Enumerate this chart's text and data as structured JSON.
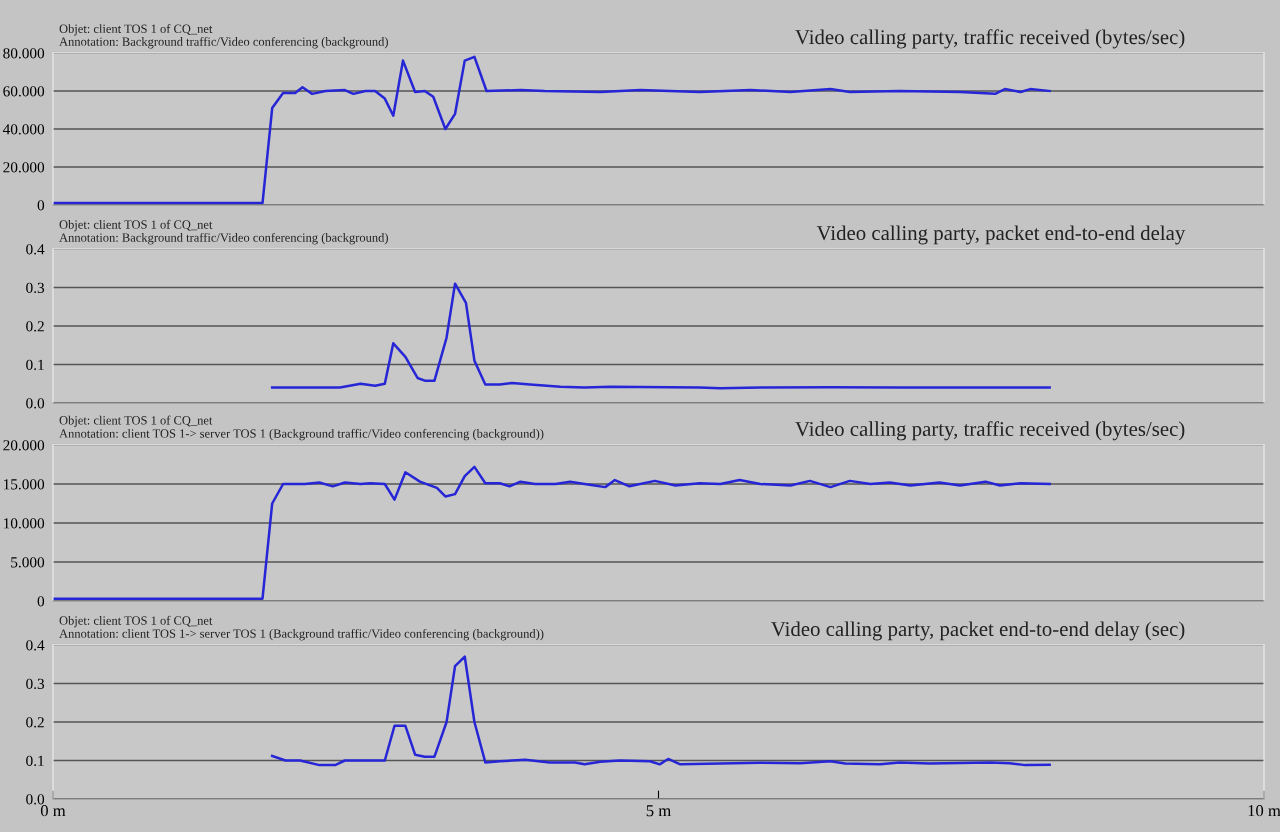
{
  "chart_data": [
    {
      "type": "line",
      "title": "Video calling party, traffic received (bytes/sec)",
      "annotations": [
        "Objet: client TOS 1 of CQ_net",
        "Annotation: Background traffic/Video conferencing (background)"
      ],
      "series": [
        {
          "color": "#2626d6",
          "x": [
            0,
            1.73,
            1.81,
            1.9,
            2.0,
            2.06,
            2.14,
            2.25,
            2.41,
            2.48,
            2.58,
            2.66,
            2.74,
            2.81,
            2.89,
            2.99,
            3.07,
            3.14,
            3.24,
            3.32,
            3.4,
            3.48,
            3.58,
            3.86,
            4.06,
            4.52,
            4.85,
            5.34,
            5.76,
            6.09,
            6.42,
            6.58,
            6.99,
            7.49,
            7.78,
            7.86,
            7.99,
            8.07,
            8.23
          ],
          "values": [
            1.0,
            1.0,
            51.0,
            59.0,
            59.0,
            62.0,
            58.5,
            60.0,
            60.5,
            58.5,
            60.0,
            60.0,
            56.0,
            47.0,
            76.0,
            59.5,
            60.0,
            57.0,
            40.0,
            48.0,
            76.0,
            78.0,
            60.0,
            60.5,
            60.0,
            59.5,
            60.5,
            59.5,
            60.5,
            59.5,
            61.0,
            59.5,
            60.0,
            59.5,
            58.5,
            61.0,
            59.5,
            61.0,
            60.0
          ]
        }
      ],
      "xlim": [
        0,
        10
      ],
      "ylim": [
        0,
        80
      ],
      "yticks": [
        0,
        {
          "value": 20,
          "label": "20.000"
        },
        {
          "value": 40,
          "label": "40.000"
        },
        {
          "value": 60,
          "label": "60.000"
        },
        {
          "value": 80,
          "label": "80.000"
        }
      ],
      "tick_labels": "y",
      "grid": "y"
    },
    {
      "type": "line",
      "title": "Video calling party, packet end-to-end delay",
      "annotations": [
        "Objet: client TOS 1 of CQ_net",
        "Annotation: Background traffic/Video conferencing (background)"
      ],
      "series": [
        {
          "color": "#2626d6",
          "x": [
            1.81,
            2.37,
            2.54,
            2.66,
            2.74,
            2.81,
            2.91,
            3.01,
            3.07,
            3.15,
            3.25,
            3.32,
            3.41,
            3.48,
            3.57,
            3.69,
            3.79,
            3.94,
            4.19,
            4.39,
            4.6,
            5.34,
            5.51,
            5.84,
            6.42,
            6.99,
            8.23
          ],
          "values": [
            0.04,
            0.04,
            0.05,
            0.045,
            0.05,
            0.155,
            0.12,
            0.065,
            0.058,
            0.058,
            0.17,
            0.31,
            0.26,
            0.11,
            0.048,
            0.048,
            0.052,
            0.048,
            0.042,
            0.04,
            0.042,
            0.04,
            0.038,
            0.04,
            0.041,
            0.04,
            0.04
          ]
        }
      ],
      "xlim": [
        0,
        10
      ],
      "ylim": [
        0,
        0.4
      ],
      "yticks": [
        {
          "value": 0,
          "label": "0.0"
        },
        0.1,
        0.2,
        0.3,
        0.4
      ],
      "tick_labels": "y",
      "grid": "y"
    },
    {
      "type": "line",
      "title": "Video calling party, traffic received (bytes/sec)",
      "annotations": [
        "Objet: client TOS 1 of CQ_net",
        "Annotation: client TOS 1-> server TOS 1 (Background traffic/Video conferencing (background))"
      ],
      "series": [
        {
          "color": "#2626d6",
          "x": [
            0,
            1.73,
            1.81,
            1.9,
            2.08,
            2.2,
            2.31,
            2.41,
            2.54,
            2.62,
            2.74,
            2.82,
            2.91,
            3.03,
            3.17,
            3.24,
            3.32,
            3.4,
            3.48,
            3.57,
            3.69,
            3.77,
            3.86,
            3.98,
            4.15,
            4.27,
            4.43,
            4.56,
            4.64,
            4.76,
            4.97,
            5.14,
            5.34,
            5.51,
            5.67,
            5.84,
            6.09,
            6.25,
            6.42,
            6.58,
            6.75,
            6.91,
            7.08,
            7.32,
            7.49,
            7.7,
            7.82,
            7.99,
            8.23
          ],
          "values": [
            0.3,
            0.3,
            12.5,
            15.0,
            15.0,
            15.2,
            14.7,
            15.2,
            15.0,
            15.1,
            15.0,
            13.0,
            16.5,
            15.3,
            14.5,
            13.4,
            13.7,
            16.0,
            17.2,
            15.1,
            15.1,
            14.7,
            15.3,
            15.0,
            15.0,
            15.3,
            14.9,
            14.6,
            15.5,
            14.7,
            15.4,
            14.8,
            15.1,
            15.0,
            15.5,
            15.0,
            14.8,
            15.4,
            14.6,
            15.4,
            15.0,
            15.2,
            14.8,
            15.2,
            14.8,
            15.3,
            14.8,
            15.1,
            15.0
          ]
        }
      ],
      "xlim": [
        0,
        10
      ],
      "ylim": [
        0,
        20
      ],
      "yticks": [
        0,
        {
          "value": 5,
          "label": "5.000"
        },
        {
          "value": 10,
          "label": "10.000"
        },
        {
          "value": 15,
          "label": "15.000"
        },
        {
          "value": 20,
          "label": "20.000"
        }
      ],
      "tick_labels": "y",
      "grid": "y"
    },
    {
      "type": "line",
      "title": "Video calling party, packet end-to-end delay (sec)",
      "annotations": [
        "Objet: client TOS 1 of CQ_net",
        "Annotation: client TOS 1-> server TOS 1 (Background traffic/Video conferencing (background))"
      ],
      "series": [
        {
          "color": "#2626d6",
          "x": [
            1.81,
            1.92,
            2.04,
            2.2,
            2.33,
            2.41,
            2.74,
            2.82,
            2.91,
            2.99,
            3.07,
            3.15,
            3.25,
            3.32,
            3.4,
            3.48,
            3.57,
            3.69,
            3.9,
            4.1,
            4.31,
            4.39,
            4.52,
            4.68,
            4.93,
            5.01,
            5.08,
            5.18,
            5.51,
            5.84,
            6.17,
            6.42,
            6.54,
            6.83,
            6.99,
            7.24,
            7.74,
            7.9,
            8.03,
            8.23
          ],
          "values": [
            0.112,
            0.1,
            0.1,
            0.088,
            0.088,
            0.1,
            0.1,
            0.19,
            0.19,
            0.115,
            0.11,
            0.11,
            0.2,
            0.345,
            0.37,
            0.2,
            0.095,
            0.098,
            0.102,
            0.095,
            0.095,
            0.09,
            0.097,
            0.1,
            0.098,
            0.09,
            0.104,
            0.09,
            0.092,
            0.094,
            0.093,
            0.098,
            0.092,
            0.09,
            0.095,
            0.092,
            0.095,
            0.093,
            0.088,
            0.089
          ]
        }
      ],
      "xlim": [
        0,
        10
      ],
      "xticks": [
        {
          "value": 0,
          "label": "0 m"
        },
        {
          "value": 5,
          "label": "5 m"
        },
        {
          "value": 10,
          "label": "10 m"
        }
      ],
      "ylim": [
        0,
        0.4
      ],
      "yticks": [
        {
          "value": 0,
          "label": "0.0"
        },
        0.1,
        0.2,
        0.3,
        0.4
      ],
      "grid": "y"
    }
  ]
}
